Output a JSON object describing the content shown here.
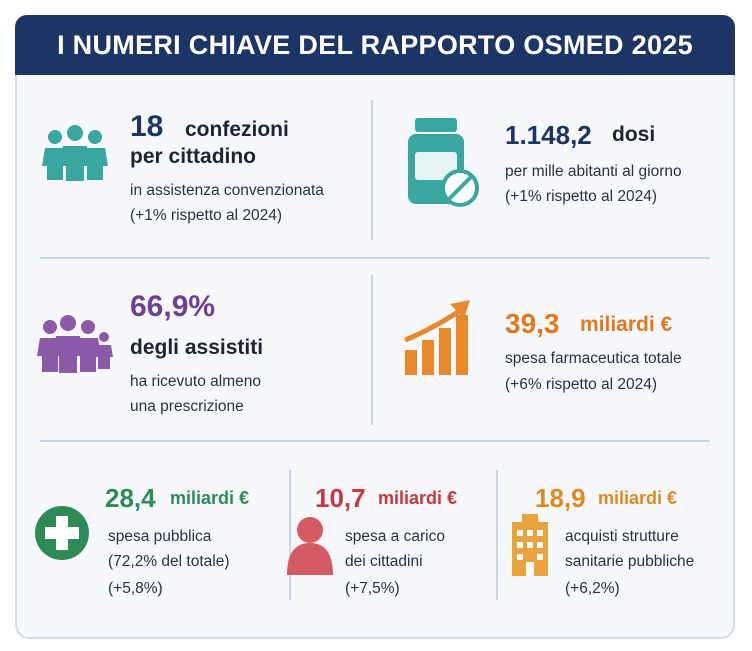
{
  "header": {
    "title": "I NUMERI CHIAVE DEL RAPPORTO OSMED 2025"
  },
  "stats": [
    {
      "value": "18",
      "unit": "confezioni",
      "subtitle": "per cittadino",
      "lines": [
        "in assistenza convenzionata",
        "(+1% rispetto al 2024)"
      ]
    },
    {
      "value": "1.148,2",
      "unit": "dosi",
      "lines": [
        "per mille abitanti al giorno",
        "(+1% rispetto al 2024)"
      ]
    },
    {
      "value": "66,9%",
      "subtitle": "degli assistiti",
      "lines": [
        "ha ricevuto almeno",
        "una prescrizione"
      ]
    },
    {
      "value": "39,3",
      "unit": "miliardi €",
      "lines": [
        "spesa farmaceutica totale",
        "(+6% rispetto al 2024)"
      ]
    },
    {
      "value": "28,4",
      "unit": "miliardi €",
      "lines": [
        "spesa pubblica",
        "(72,2% del totale)",
        "(+5,8%)"
      ]
    },
    {
      "value": "10,7",
      "unit": "miliardi €",
      "lines": [
        "spesa a carico",
        "dei cittadini",
        "(+7,5%)"
      ]
    },
    {
      "value": "18,9",
      "unit": "miliardi €",
      "lines": [
        "acquisti strutture",
        "sanitarie pubbliche",
        "(+6,2%)"
      ]
    }
  ]
}
